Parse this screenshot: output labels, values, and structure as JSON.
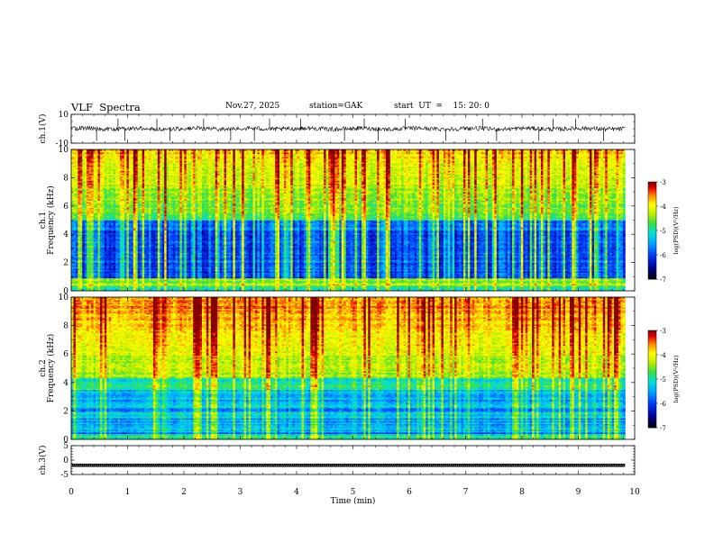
{
  "header": {
    "title": "VLF  Spectra",
    "date": "Nov.27, 2025",
    "station": "station=GAK",
    "start": "start  UT  =    15: 20: 0"
  },
  "colors": {
    "ch1_trace": "#000000",
    "cmap": [
      "#000000",
      "#0000aa",
      "#0044ff",
      "#00aaff",
      "#00e0e0",
      "#33dd33",
      "#ccee00",
      "#ffff00",
      "#ff8800",
      "#ee0000",
      "#880000"
    ]
  },
  "chart_data": [
    {
      "type": "line",
      "name": "ch1-waveform",
      "ylabel": "ch.1(V)",
      "ylim": [
        -10,
        10
      ],
      "yticks": [
        "10",
        "-10"
      ],
      "baseline": 0,
      "noise_amplitude": 1.5,
      "spikes_min": [
        0.45,
        0.83,
        0.95,
        1.52,
        1.75,
        2.35,
        2.83,
        3.25,
        3.52,
        4.07,
        4.85,
        5.2,
        5.45,
        5.93,
        6.65,
        7.3,
        7.55,
        8.3,
        8.55,
        8.95,
        9.45
      ]
    },
    {
      "type": "heatmap",
      "name": "ch1-spectrogram",
      "ylabel": "ch.1",
      "ylabel2": "Frequency  (kHz)",
      "ylim": [
        0,
        10
      ],
      "yticks": [
        "0",
        "2",
        "4",
        "6",
        "8",
        "10"
      ],
      "colorbar": {
        "label": "log(PSD)(V²/Hz)",
        "range": [
          -7,
          -3
        ],
        "ticks": [
          "-3",
          "-4",
          "-5",
          "-6",
          "-7"
        ]
      }
    },
    {
      "type": "heatmap",
      "name": "ch2-spectrogram",
      "ylabel": "ch.2",
      "ylabel2": "Frequency  (kHz)",
      "ylim": [
        0,
        10
      ],
      "yticks": [
        "0",
        "2",
        "4",
        "6",
        "8",
        "10"
      ],
      "colorbar": {
        "label": "log(PSD)(V²/Hz)",
        "range": [
          -7,
          -3
        ],
        "ticks": [
          "-3",
          "-4",
          "-5",
          "-6",
          "-7"
        ]
      }
    },
    {
      "type": "line",
      "name": "ch3-waveform",
      "ylabel": "ch.3(V)",
      "ylim": [
        -5,
        5
      ],
      "yticks": [
        "5",
        "0",
        "-5"
      ],
      "baseline": -1.8
    }
  ],
  "xaxis": {
    "label": "Time  (min)",
    "range": [
      0,
      10
    ],
    "data_end": 9.83,
    "ticks": [
      "0",
      "1",
      "2",
      "3",
      "4",
      "5",
      "6",
      "7",
      "8",
      "9",
      "10"
    ]
  }
}
